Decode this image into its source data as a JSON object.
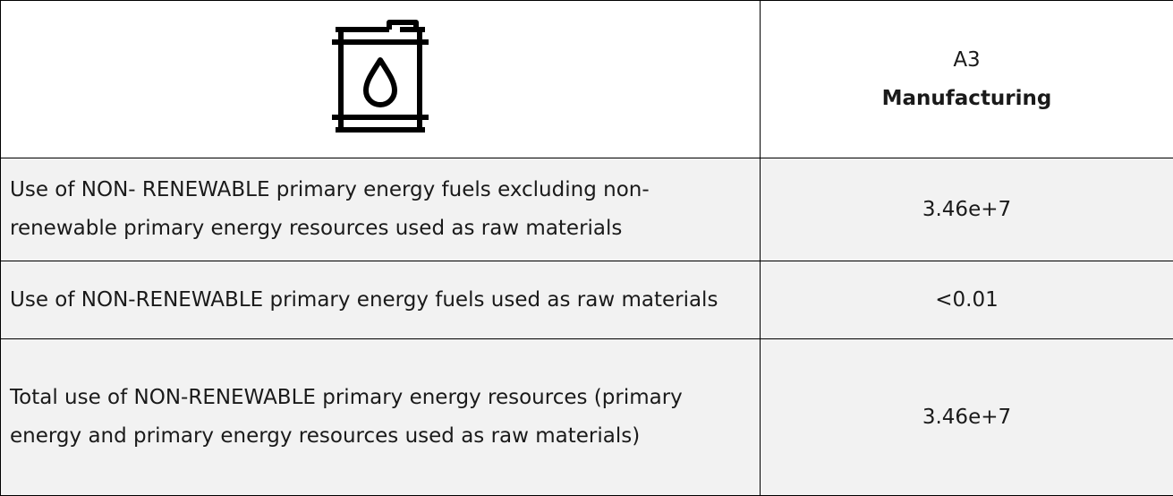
{
  "header": {
    "code": "A3",
    "title": "Manufacturing"
  },
  "rows": [
    {
      "label": "Use of NON- RENEWABLE primary energy fuels excluding non- renewable primary energy resources used as raw materials",
      "value": "3.46e+7"
    },
    {
      "label": "Use of NON-RENEWABLE primary energy fuels used as raw materials",
      "value": "<0.01"
    },
    {
      "label": "Total use of NON-RENEWABLE primary energy resources (primary energy and primary energy resources used as raw materials)",
      "value": "3.46e+7"
    }
  ]
}
